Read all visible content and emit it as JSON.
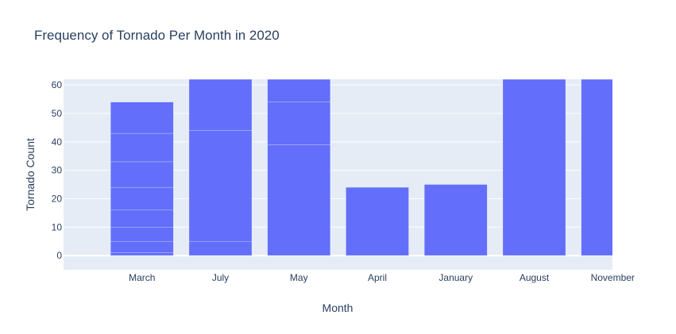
{
  "chart_data": {
    "type": "bar",
    "title": "Frequency of Tornado Per Month in 2020",
    "xlabel": "Month",
    "ylabel": "Tornado Count",
    "categories": [
      "March",
      "July",
      "May",
      "April",
      "January",
      "August",
      "November"
    ],
    "values": [
      54,
      62,
      62,
      24,
      25,
      62,
      62
    ],
    "segments": [
      [
        1,
        5,
        10,
        16,
        24,
        33,
        43,
        54
      ],
      [
        5,
        44,
        62
      ],
      [
        39,
        54,
        62
      ],
      [
        24
      ],
      [
        25
      ],
      [
        62
      ],
      [
        62
      ]
    ],
    "ylim": [
      -5,
      62
    ],
    "yticks": [
      0,
      10,
      20,
      30,
      40,
      50,
      60
    ],
    "grid": true,
    "colors": {
      "bar": "#636efa",
      "plot_bg": "#e5ecf6",
      "grid": "#ffffff",
      "text": "#2a3f5f"
    }
  }
}
